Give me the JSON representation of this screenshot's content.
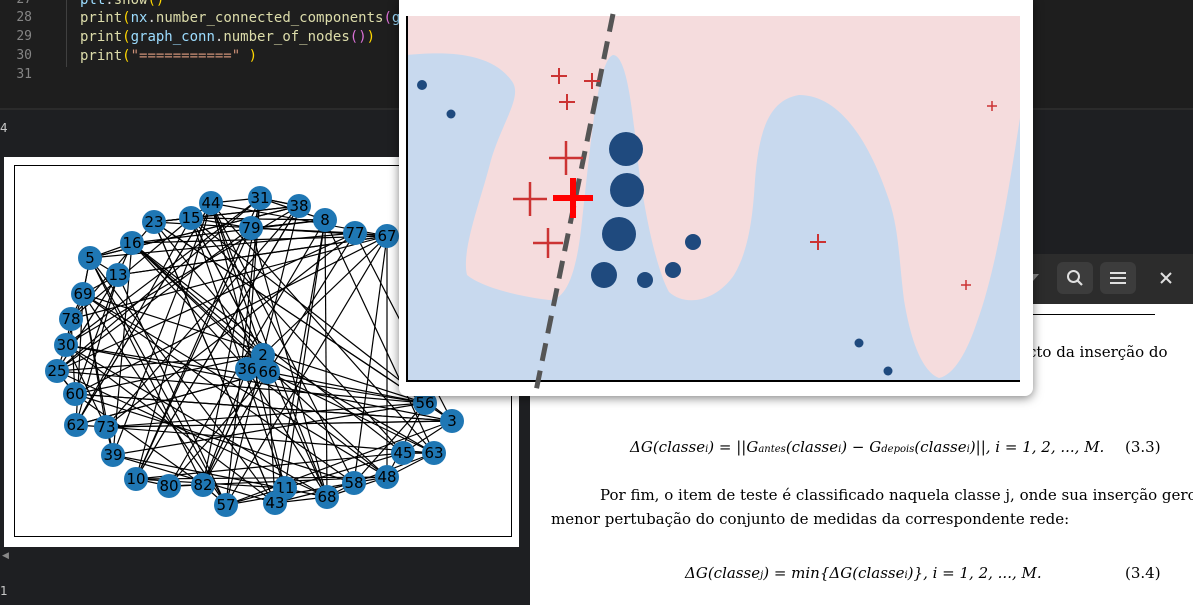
{
  "editor": {
    "lines": [
      {
        "num": "27",
        "code": "plt.show()"
      },
      {
        "num": "28",
        "code": "print(nx.number_connected_components(g"
      },
      {
        "num": "29",
        "code": "print(graph_conn.number_of_nodes())"
      },
      {
        "num": "30",
        "code": "print(\"===========\")"
      },
      {
        "num": "31",
        "code": ""
      }
    ]
  },
  "side": {
    "num_top": "4",
    "num_bottom": "1"
  },
  "graph": {
    "nodes": [
      "44",
      "31",
      "38",
      "23",
      "15",
      "8",
      "79",
      "77",
      "67",
      "16",
      "5",
      "13",
      "69",
      "78",
      "30",
      "25",
      "60",
      "2",
      "36",
      "66",
      "62",
      "73",
      "39",
      "56",
      "3",
      "45",
      "63",
      "48",
      "10",
      "80",
      "82",
      "57",
      "11",
      "43",
      "68",
      "58"
    ]
  },
  "doc": {
    "paragraph1_tail": "cto da inserção do",
    "eq1": "ΔG(classe",
    "eq1_number": "(3.3)",
    "para2_line1": "Por fim, o item de teste é classificado naquela classe j, onde sua inserção gerou a",
    "para2_line2": "menor pertubação do conjunto de medidas da correspondente rede:",
    "eq2_number": "(3.4)",
    "icons": {
      "dropdown": "chevron-down-icon",
      "search": "search-icon",
      "menu": "hamburger-menu-icon",
      "close": "close-icon"
    }
  },
  "colors": {
    "class_a": "#c8d9ee",
    "class_b": "#f5dcdd",
    "marker_plus": "#cc3333",
    "marker_dot": "#1f4a7e",
    "highlight_plus": "#ff0000"
  }
}
